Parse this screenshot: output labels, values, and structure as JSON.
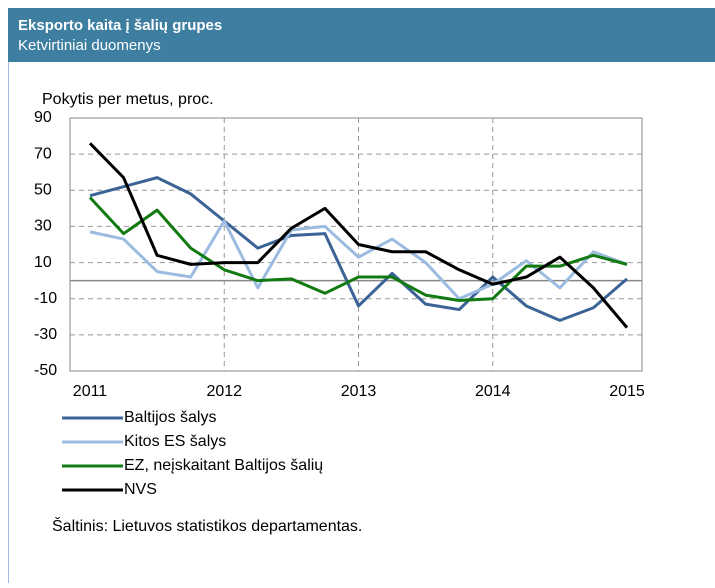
{
  "chart_data": {
    "type": "line",
    "title": "Eksporto kaita į šalių grupes",
    "subtitle": "Ketvirtiniai duomenys",
    "y_axis_label": "Pokytis per metus, proc.",
    "source": "Šaltinis: Lietuvos statistikos departamentas.",
    "x": [
      2011,
      2011.25,
      2011.5,
      2011.75,
      2012,
      2012.25,
      2012.5,
      2012.75,
      2013,
      2013.25,
      2013.5,
      2013.75,
      2014,
      2014.25,
      2014.5,
      2014.75,
      2015
    ],
    "xlim": [
      2011,
      2015
    ],
    "xticks": [
      2011,
      2012,
      2013,
      2014,
      2015
    ],
    "ylim": [
      -50,
      90
    ],
    "yticks": [
      90,
      70,
      50,
      30,
      10,
      -10,
      -30,
      -50
    ],
    "grid": true,
    "series": [
      {
        "name": "Baltijos šalys",
        "color": "#3b6395",
        "values": [
          47,
          52,
          57,
          48,
          33,
          18,
          25,
          26,
          -14,
          4,
          -13,
          -16,
          2,
          -14,
          -22,
          -15,
          1
        ]
      },
      {
        "name": "Kitos ES šalys",
        "color": "#9bbbe0",
        "values": [
          27,
          23,
          5,
          2,
          33,
          -4,
          28,
          30,
          13,
          23,
          10,
          -10,
          -2,
          11,
          -4,
          16,
          9
        ]
      },
      {
        "name": "EZ, neįskaitant Baltijos šalių",
        "color": "#117a11",
        "values": [
          46,
          26,
          39,
          18,
          6,
          0,
          1,
          -7,
          2,
          2,
          -8,
          -11,
          -10,
          8,
          8,
          14,
          9
        ]
      },
      {
        "name": "NVS",
        "color": "#000000",
        "values": [
          76,
          57,
          14,
          9,
          10,
          10,
          29,
          40,
          20,
          16,
          16,
          6,
          -2,
          2,
          13,
          -4,
          -26
        ]
      }
    ]
  }
}
